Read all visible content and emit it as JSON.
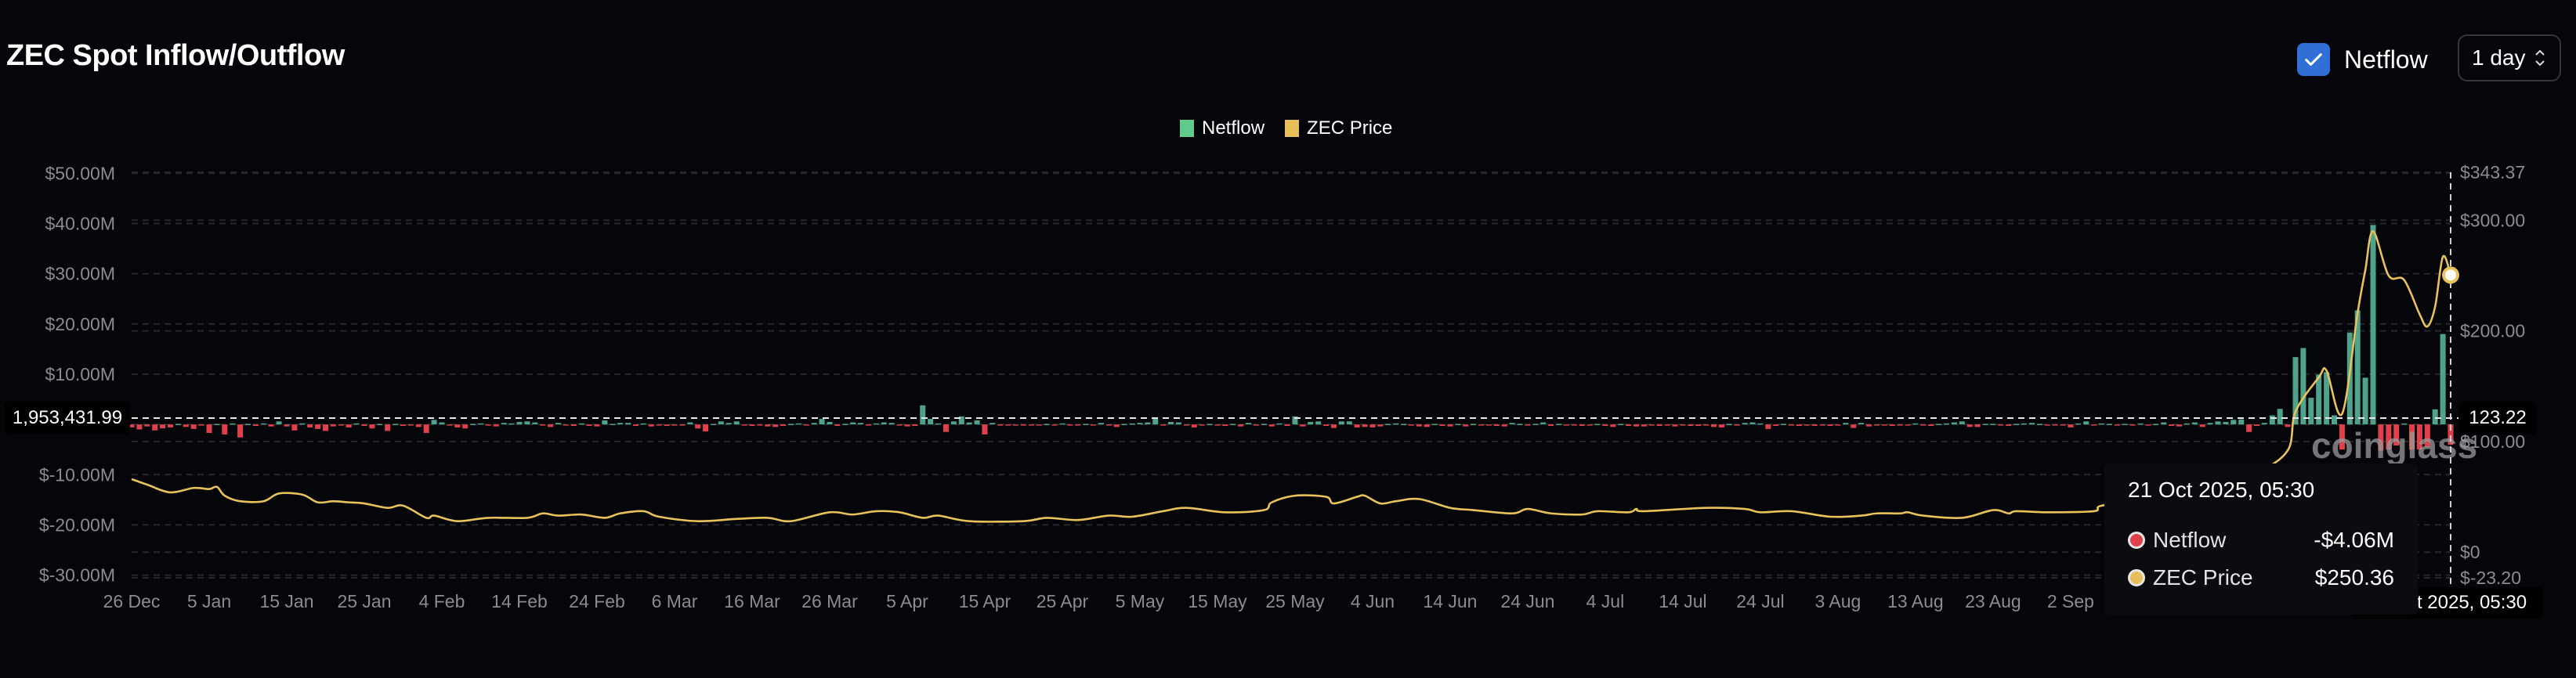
{
  "header": {
    "title": "ZEC Spot Inflow/Outflow",
    "netflow_toggle": {
      "label": "Netflow",
      "checked": true
    },
    "interval_select": {
      "value": "1 day"
    }
  },
  "legend": [
    {
      "label": "Netflow",
      "color": "#5fc98e"
    },
    {
      "label": "ZEC Price",
      "color": "#e6be5a"
    }
  ],
  "colors": {
    "background": "#05060a",
    "inflow": "#4fa38c",
    "outflow": "#e0404c",
    "price_line": "#e8c25a",
    "accent": "#2f6fd6"
  },
  "watermark": "coinglass",
  "crosshair": {
    "left_value": "1,953,431.99",
    "right_value": "123.22",
    "date_label": "21 Oct 2025, 05:30"
  },
  "tooltip": {
    "title": "21 Oct 2025, 05:30",
    "rows": [
      {
        "label": "Netflow",
        "value": "-$4.06M",
        "dot": "#e0404c"
      },
      {
        "label": "ZEC Price",
        "value": "$250.36",
        "dot": "#e6be5a"
      }
    ]
  },
  "chart_data": {
    "type": "bar+line",
    "title": "ZEC Spot Inflow/Outflow",
    "x_range": [
      "2024-12-26",
      "2025-10-21"
    ],
    "x_ticks": [
      "26 Dec",
      "5 Jan",
      "15 Jan",
      "25 Jan",
      "4 Feb",
      "14 Feb",
      "24 Feb",
      "6 Mar",
      "16 Mar",
      "26 Mar",
      "5 Apr",
      "15 Apr",
      "25 Apr",
      "5 May",
      "15 May",
      "25 May",
      "4 Jun",
      "14 Jun",
      "24 Jun",
      "4 Jul",
      "14 Jul",
      "24 Jul",
      "3 Aug",
      "13 Aug",
      "23 Aug",
      "2 Sep"
    ],
    "left_axis": {
      "unit": "USD millions",
      "ylim": [
        -30,
        50
      ],
      "ticks": [
        {
          "v": 50,
          "label": "$50.00M"
        },
        {
          "v": 40,
          "label": "$40.00M"
        },
        {
          "v": 30,
          "label": "$30.00M"
        },
        {
          "v": 20,
          "label": "$20.00M"
        },
        {
          "v": 10,
          "label": "$10.00M"
        },
        {
          "v": -10,
          "label": "$-10.00M"
        },
        {
          "v": -20,
          "label": "$-20.00M"
        },
        {
          "v": -30,
          "label": "$-30.00M"
        }
      ]
    },
    "right_axis": {
      "ylim": [
        -23.2,
        343.37
      ],
      "ticks": [
        {
          "v": 343.37,
          "label": "$343.37"
        },
        {
          "v": 300,
          "label": "$300.00"
        },
        {
          "v": 200,
          "label": "$200.00"
        },
        {
          "v": 100,
          "label": "$100.00"
        },
        {
          "v": 0,
          "label": "$0"
        },
        {
          "v": -23.2,
          "label": "$-23.20"
        }
      ]
    },
    "grid": true,
    "legend_position": "top-center",
    "netflow_daily_musd": [
      {
        "month": "2024-12",
        "from_day": 26,
        "values": [
          -0.6,
          -1.0,
          -0.4,
          -1.2,
          -0.8,
          -0.6
        ]
      },
      {
        "month": "2025-01",
        "from_day": 1,
        "values": [
          0.1,
          -0.5,
          -0.9,
          -0.2,
          -1.7,
          0.1,
          -2.0,
          0.2,
          -2.6,
          0.1,
          -0.3,
          0.2,
          -0.4,
          0.6,
          -0.4,
          -1.2,
          0.2,
          -0.6,
          -0.9,
          -1.3,
          -0.4,
          -0.2,
          -0.6,
          0.2,
          -0.3,
          -0.8,
          0.1,
          -1.3,
          0.1,
          -0.3,
          -0.2
        ]
      },
      {
        "month": "2025-02",
        "from_day": 1,
        "values": [
          -0.5,
          -1.7,
          0.9,
          0.4,
          -0.2,
          -0.6,
          -0.8,
          0.1,
          0.2,
          -0.2,
          -0.4,
          0.3,
          0.2,
          0.5,
          0.6,
          0.4,
          -0.2,
          -0.5,
          0.3,
          -0.2,
          -0.3,
          0.2,
          -0.3,
          -0.4,
          0.8,
          0.1,
          0.3,
          0.3
        ]
      },
      {
        "month": "2025-03",
        "from_day": 1,
        "values": [
          -0.3,
          0.2,
          -0.4,
          -0.2,
          -0.3,
          -0.2,
          -0.2,
          0.4,
          -0.8,
          -1.4,
          0.1,
          0.6,
          0.3,
          0.6,
          -0.1,
          -0.3,
          -0.2,
          -0.4,
          -0.5,
          -0.3,
          0.1,
          0.2,
          -0.1,
          0.3,
          1.1,
          0.5,
          -0.3,
          0.1,
          0.4,
          0.3,
          -0.2
        ]
      },
      {
        "month": "2025-04",
        "from_day": 1,
        "values": [
          0.2,
          0.4,
          0.3,
          -0.2,
          -0.4,
          -0.3,
          3.8,
          1.1,
          0.2,
          -1.5,
          0.6,
          1.6,
          0.4,
          0.8,
          -2.0,
          0.3,
          -0.2,
          -0.2,
          -0.2,
          -0.2,
          -0.2,
          -0.2,
          0.1,
          -0.1,
          0.2,
          -0.1,
          -0.2,
          0.1,
          -0.2,
          0.3
        ]
      },
      {
        "month": "2025-05",
        "from_day": 1,
        "values": [
          -0.2,
          -0.5,
          0.1,
          0.2,
          0.3,
          0.4,
          1.1,
          -0.1,
          0.5,
          0.4,
          -0.1,
          -0.6,
          -0.1,
          0.1,
          -0.2,
          -0.3,
          0.1,
          -0.4,
          0.3,
          -0.2,
          0.1,
          -0.4,
          0.2,
          -0.3,
          1.6,
          -0.4,
          0.5,
          0.6,
          -0.3,
          -0.7,
          0.6
        ]
      },
      {
        "month": "2025-06",
        "from_day": 1,
        "values": [
          0.6,
          -0.6,
          -0.5,
          -0.6,
          -0.4,
          0.1,
          0.2,
          0.1,
          -0.2,
          -0.4,
          -0.5,
          0.1,
          -0.3,
          -0.4,
          0.1,
          -0.4,
          0.1,
          -0.2,
          -0.1,
          -0.3,
          -0.4,
          0.3,
          0.1,
          -0.2,
          0.1,
          0.4,
          -0.3,
          0.1,
          -0.2,
          -0.2
        ]
      },
      {
        "month": "2025-07",
        "from_day": 1,
        "values": [
          -0.3,
          -0.2,
          0.1,
          -0.3,
          -0.5,
          0.1,
          -0.3,
          -0.4,
          -0.4,
          -0.2,
          -0.3,
          -0.2,
          -0.4,
          -0.2,
          -0.3,
          -0.3,
          -0.2,
          -0.5,
          -0.6,
          0.1,
          -0.2,
          0.3,
          0.4,
          0.2,
          -0.9,
          -0.3,
          0.1,
          -0.2,
          -0.3,
          -0.2,
          -0.3
        ]
      },
      {
        "month": "2025-08",
        "from_day": 1,
        "values": [
          -0.2,
          -0.3,
          -0.2,
          0.3,
          -0.7,
          0.3,
          -0.4,
          -0.2,
          -0.2,
          -0.3,
          -0.2,
          -0.2,
          0.2,
          -0.2,
          -0.3,
          0.1,
          0.2,
          0.4,
          0.6,
          -0.5,
          -0.5,
          0.1,
          0.1,
          -0.2,
          -0.3,
          0.1,
          0.2,
          0.3,
          0.1,
          -0.2,
          -0.1
        ]
      },
      {
        "month": "2025-09",
        "from_day": 1,
        "values": [
          -0.2,
          -0.6,
          0.2,
          0.6,
          -0.1,
          0.2,
          0.1,
          -0.1,
          0.1,
          -0.1,
          0.2,
          -0.2,
          0.1,
          0.4,
          -0.3,
          -0.4,
          0.2,
          0.4,
          -0.5,
          0.3,
          0.6,
          0.5,
          0.9,
          1.0,
          -1.5,
          -0.3,
          0.3,
          1.8,
          3.1,
          -0.5
        ]
      },
      {
        "month": "2025-10",
        "from_day": 1,
        "values": [
          13.4,
          15.2,
          5.3,
          9.9,
          10.4,
          1.8,
          -5.0,
          18.3,
          22.7,
          9.3,
          39.7,
          -5.2,
          -5.0,
          -4.2,
          0.2,
          -5.0,
          -5.0,
          -4.5,
          3.0,
          18.0,
          -4.06
        ]
      }
    ],
    "price_usd": [
      [
        "2024-12-26",
        66
      ],
      [
        "2024-12-28",
        61
      ],
      [
        "2024-12-31",
        54
      ],
      [
        "2025-01-03",
        58
      ],
      [
        "2025-01-05",
        57
      ],
      [
        "2025-01-06",
        59
      ],
      [
        "2025-01-07",
        51
      ],
      [
        "2025-01-09",
        46
      ],
      [
        "2025-01-12",
        46
      ],
      [
        "2025-01-14",
        53
      ],
      [
        "2025-01-17",
        52
      ],
      [
        "2025-01-19",
        45
      ],
      [
        "2025-01-21",
        46
      ],
      [
        "2025-01-23",
        45
      ],
      [
        "2025-01-25",
        44
      ],
      [
        "2025-01-28",
        40
      ],
      [
        "2025-01-30",
        42
      ],
      [
        "2025-02-02",
        31
      ],
      [
        "2025-02-03",
        33
      ],
      [
        "2025-02-06",
        28
      ],
      [
        "2025-02-10",
        31
      ],
      [
        "2025-02-15",
        31
      ],
      [
        "2025-02-17",
        35
      ],
      [
        "2025-02-19",
        33
      ],
      [
        "2025-02-22",
        34
      ],
      [
        "2025-02-25",
        31
      ],
      [
        "2025-02-27",
        35
      ],
      [
        "2025-03-02",
        37
      ],
      [
        "2025-03-04",
        32
      ],
      [
        "2025-03-09",
        28
      ],
      [
        "2025-03-14",
        30
      ],
      [
        "2025-03-18",
        31
      ],
      [
        "2025-03-21",
        28
      ],
      [
        "2025-03-26",
        36
      ],
      [
        "2025-03-29",
        34
      ],
      [
        "2025-04-01",
        37
      ],
      [
        "2025-04-04",
        36
      ],
      [
        "2025-04-07",
        31
      ],
      [
        "2025-04-09",
        33
      ],
      [
        "2025-04-13",
        28
      ],
      [
        "2025-04-20",
        28
      ],
      [
        "2025-04-23",
        31
      ],
      [
        "2025-04-27",
        29
      ],
      [
        "2025-05-01",
        33
      ],
      [
        "2025-05-04",
        32
      ],
      [
        "2025-05-08",
        37
      ],
      [
        "2025-05-11",
        40
      ],
      [
        "2025-05-16",
        36
      ],
      [
        "2025-05-21",
        38
      ],
      [
        "2025-05-22",
        45
      ],
      [
        "2025-05-25",
        51
      ],
      [
        "2025-05-29",
        50
      ],
      [
        "2025-05-30",
        44
      ],
      [
        "2025-06-02",
        50
      ],
      [
        "2025-06-03",
        51
      ],
      [
        "2025-06-05",
        44
      ],
      [
        "2025-06-07",
        46
      ],
      [
        "2025-06-10",
        48
      ],
      [
        "2025-06-14",
        40
      ],
      [
        "2025-06-17",
        38
      ],
      [
        "2025-06-22",
        35
      ],
      [
        "2025-06-24",
        39
      ],
      [
        "2025-06-27",
        35
      ],
      [
        "2025-07-01",
        34
      ],
      [
        "2025-07-03",
        37
      ],
      [
        "2025-07-07",
        36
      ],
      [
        "2025-07-08",
        39
      ],
      [
        "2025-07-09",
        37
      ],
      [
        "2025-07-17",
        40
      ],
      [
        "2025-07-22",
        39
      ],
      [
        "2025-07-24",
        36
      ],
      [
        "2025-07-28",
        37
      ],
      [
        "2025-08-02",
        32
      ],
      [
        "2025-08-06",
        33
      ],
      [
        "2025-08-08",
        35
      ],
      [
        "2025-08-11",
        35
      ],
      [
        "2025-08-12",
        36
      ],
      [
        "2025-08-14",
        33
      ],
      [
        "2025-08-19",
        31
      ],
      [
        "2025-08-23",
        38
      ],
      [
        "2025-08-25",
        35
      ],
      [
        "2025-08-26",
        37
      ],
      [
        "2025-08-30",
        36
      ],
      [
        "2025-09-05",
        37
      ],
      [
        "2025-09-06",
        42
      ],
      [
        "2025-09-12",
        48
      ],
      [
        "2025-09-20",
        60
      ],
      [
        "2025-09-26",
        72
      ],
      [
        "2025-09-30",
        92
      ],
      [
        "2025-10-01",
        127
      ],
      [
        "2025-10-04",
        158
      ],
      [
        "2025-10-05",
        164
      ],
      [
        "2025-10-07",
        125
      ],
      [
        "2025-10-09",
        216
      ],
      [
        "2025-10-10",
        255
      ],
      [
        "2025-10-11",
        290
      ],
      [
        "2025-10-13",
        250
      ],
      [
        "2025-10-15",
        246
      ],
      [
        "2025-10-17",
        215
      ],
      [
        "2025-10-18",
        204
      ],
      [
        "2025-10-19",
        222
      ],
      [
        "2025-10-20",
        267
      ],
      [
        "2025-10-21",
        250.36
      ]
    ]
  }
}
